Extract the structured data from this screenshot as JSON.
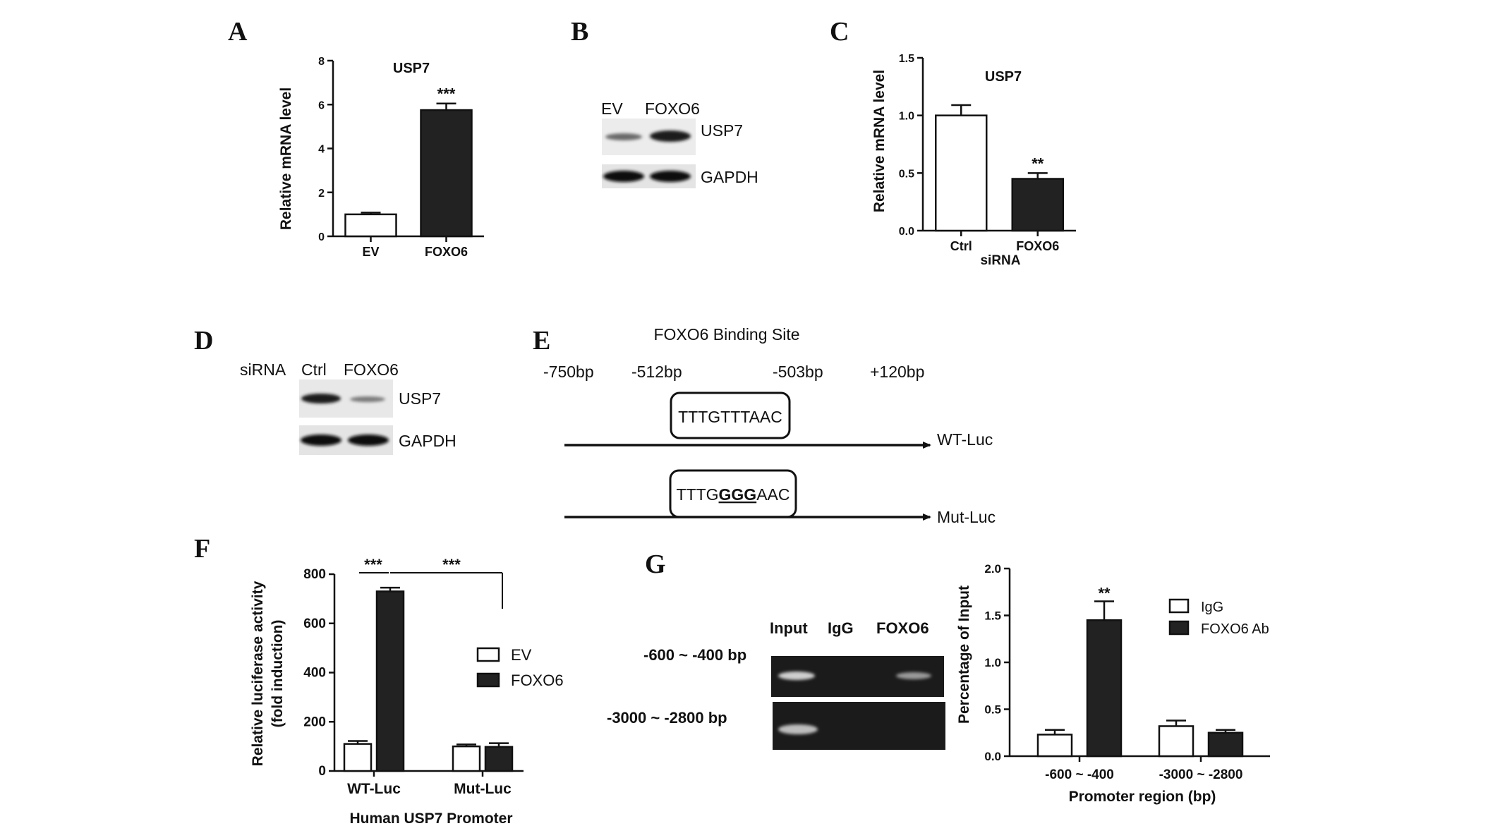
{
  "panels": {
    "A": "A",
    "B": "B",
    "C": "C",
    "D": "D",
    "E": "E",
    "F": "F",
    "G": "G"
  },
  "chart_data": [
    {
      "id": "A",
      "type": "bar",
      "title": "USP7",
      "ylabel": "Relative  mRNA level",
      "categories": [
        "EV",
        "FOXO6"
      ],
      "values": [
        1.0,
        5.75
      ],
      "errors": [
        0.08,
        0.3
      ],
      "fills": [
        "#ffffff",
        "#222222"
      ],
      "ylim": [
        0,
        8
      ],
      "yticks": [
        "0",
        "2",
        "4",
        "6",
        "8"
      ],
      "annotations": [
        {
          "category": 1,
          "text": "***"
        }
      ],
      "grid": false
    },
    {
      "id": "C",
      "type": "bar",
      "title": "USP7",
      "ylabel": "Relative  mRNA level",
      "xlabel": "siRNA",
      "categories": [
        "Ctrl",
        "FOXO6"
      ],
      "values": [
        1.0,
        0.45
      ],
      "errors": [
        0.09,
        0.05
      ],
      "fills": [
        "#ffffff",
        "#222222"
      ],
      "ylim": [
        0,
        1.5
      ],
      "yticks": [
        "0.0",
        "0.5",
        "1.0",
        "1.5"
      ],
      "annotations": [
        {
          "category": 1,
          "text": "**"
        }
      ],
      "grid": false
    },
    {
      "id": "F",
      "type": "bar",
      "ylabel": "Relative luciferase activity",
      "ylabel2": "(fold induction)",
      "xlabel": "Human USP7 Promoter",
      "categories": [
        "WT-Luc",
        "Mut-Luc"
      ],
      "series": [
        {
          "name": "EV",
          "values": [
            110,
            100
          ],
          "errors": [
            12,
            8
          ],
          "fill": "#ffffff"
        },
        {
          "name": "FOXO6",
          "values": [
            730,
            98
          ],
          "errors": [
            15,
            15
          ],
          "fill": "#222222"
        }
      ],
      "ylim": [
        0,
        800
      ],
      "yticks": [
        "0",
        "200",
        "400",
        "600",
        "800"
      ],
      "sig_labels": [
        "***",
        "***"
      ],
      "legend": "right",
      "grid": false
    },
    {
      "id": "G",
      "type": "bar",
      "ylabel": "Percentage of Input",
      "xlabel": "Promoter region (bp)",
      "categories": [
        "-600 ~ -400",
        "-3000 ~ -2800"
      ],
      "series": [
        {
          "name": "IgG",
          "values": [
            0.23,
            0.32
          ],
          "errors": [
            0.05,
            0.06
          ],
          "fill": "#ffffff"
        },
        {
          "name": "FOXO6 Ab",
          "values": [
            1.45,
            0.25
          ],
          "errors": [
            0.2,
            0.03
          ],
          "fill": "#222222"
        }
      ],
      "ylim": [
        0,
        2.0
      ],
      "yticks": [
        "0.0",
        "0.5",
        "1.0",
        "1.5",
        "2.0"
      ],
      "annotations": [
        {
          "text": "**"
        }
      ],
      "legend": "top-right",
      "grid": false
    }
  ],
  "blot_B": {
    "lanes": [
      "EV",
      "FOXO6"
    ],
    "rows": [
      "USP7",
      "GAPDH"
    ]
  },
  "blot_D": {
    "prefix": "siRNA",
    "lanes": [
      "Ctrl",
      "FOXO6"
    ],
    "rows": [
      "USP7",
      "GAPDH"
    ]
  },
  "diagram_E": {
    "title": "FOXO6 Binding Site",
    "positions": [
      "-750bp",
      "-512bp",
      "-503bp",
      "+120bp"
    ],
    "wt_seq": "TTTGTTTAAC",
    "mut_seq_pre": "TTTG",
    "mut_seq_mid": "GGG",
    "mut_seq_post": "AAC",
    "wt_label": "WT-Luc",
    "mut_label": "Mut-Luc"
  },
  "gel_G": {
    "lanes": [
      "Input",
      "IgG",
      "FOXO6"
    ],
    "rows": [
      "-600 ~ -400 bp",
      "-3000 ~ -2800 bp"
    ]
  }
}
